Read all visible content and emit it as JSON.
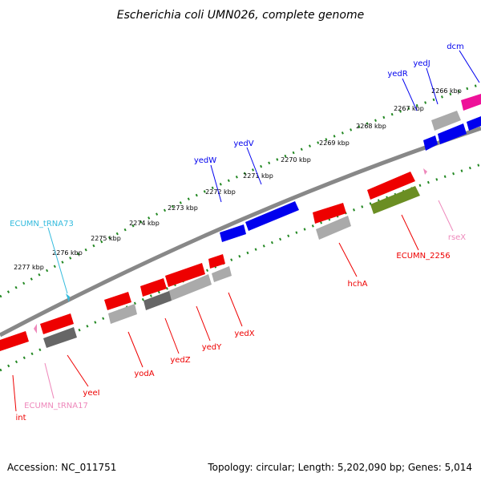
{
  "title": "Escherichia coli UMN026, complete genome",
  "footer": {
    "accession": "Accession: NC_011751",
    "summary": "Topology: circular; Length: 5,202,090 bp; Genes: 5,014"
  },
  "colors": {
    "forward": "#0000ee",
    "reverse": "#ee0000",
    "trna": "#33bbdd",
    "trna_rev": "#ee88bb",
    "pseudo": "#aaaaaa",
    "dark": "#666666",
    "olive": "#6b8e23",
    "magenta": "#ee1199",
    "backbone": "#888888",
    "ticks": "#228822"
  },
  "kbp_labels": [
    "2266 kbp",
    "2267 kbp",
    "2268 kbp",
    "2269 kbp",
    "2270 kbp",
    "2271 kbp",
    "2272 kbp",
    "2273 kbp",
    "2274 kbp",
    "2275 kbp",
    "2276 kbp",
    "2277 kbp"
  ],
  "gene_labels": [
    {
      "name": "dcm",
      "color": "#0000ee"
    },
    {
      "name": "yedJ",
      "color": "#0000ee"
    },
    {
      "name": "yedR",
      "color": "#0000ee"
    },
    {
      "name": "yedV",
      "color": "#0000ee"
    },
    {
      "name": "yedW",
      "color": "#0000ee"
    },
    {
      "name": "ECUMN_tRNA73",
      "color": "#33bbdd"
    },
    {
      "name": "rseX",
      "color": "#ee88bb"
    },
    {
      "name": "ECUMN_2256",
      "color": "#ee0000"
    },
    {
      "name": "hchA",
      "color": "#ee0000"
    },
    {
      "name": "yedX",
      "color": "#ee0000"
    },
    {
      "name": "yedY",
      "color": "#ee0000"
    },
    {
      "name": "yedZ",
      "color": "#ee0000"
    },
    {
      "name": "yodA",
      "color": "#ee0000"
    },
    {
      "name": "yeeI",
      "color": "#ee0000"
    },
    {
      "name": "ECUMN_tRNA17",
      "color": "#ee88bb"
    },
    {
      "name": "int",
      "color": "#ee0000"
    }
  ]
}
